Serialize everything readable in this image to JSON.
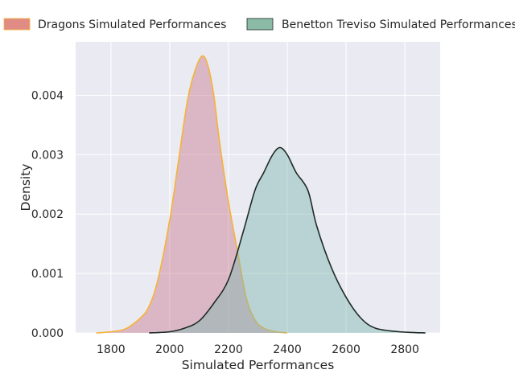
{
  "chart_data": {
    "type": "area",
    "title": "",
    "xlabel": "Simulated Performances",
    "ylabel": "Density",
    "xlim": [
      1680,
      2920
    ],
    "ylim": [
      0,
      0.0049
    ],
    "xticks": [
      1800,
      2000,
      2200,
      2400,
      2600,
      2800
    ],
    "yticks": [
      0.0,
      0.001,
      0.002,
      0.003,
      0.004
    ],
    "ytick_labels": [
      "0.000",
      "0.001",
      "0.002",
      "0.003",
      "0.004"
    ],
    "grid": true,
    "legend_position": "top",
    "series": [
      {
        "name": "Dragons Simulated Performances",
        "fill_color": "#c97a8f",
        "line_color": "#f5b335",
        "legend_color": "#e08c84",
        "points": [
          [
            1750,
            0.0
          ],
          [
            1800,
            2e-05
          ],
          [
            1850,
            7e-05
          ],
          [
            1900,
            0.00025
          ],
          [
            1930,
            0.00045
          ],
          [
            1960,
            0.0009
          ],
          [
            2000,
            0.0019
          ],
          [
            2030,
            0.0029
          ],
          [
            2060,
            0.0039
          ],
          [
            2085,
            0.0044
          ],
          [
            2110,
            0.00466
          ],
          [
            2130,
            0.0045
          ],
          [
            2150,
            0.004
          ],
          [
            2170,
            0.0032
          ],
          [
            2200,
            0.0022
          ],
          [
            2230,
            0.0014
          ],
          [
            2260,
            0.0006
          ],
          [
            2290,
            0.00022
          ],
          [
            2320,
            8e-05
          ],
          [
            2360,
            2e-05
          ],
          [
            2400,
            0.0
          ]
        ]
      },
      {
        "name": "Benetton Treviso Simulated Performances",
        "fill_color": "#7fb7b0",
        "line_color": "#1e2b25",
        "legend_color": "#8bbba7",
        "points": [
          [
            1930,
            0.0
          ],
          [
            2000,
            2e-05
          ],
          [
            2050,
            8e-05
          ],
          [
            2100,
            0.0002
          ],
          [
            2150,
            0.0005
          ],
          [
            2200,
            0.0009
          ],
          [
            2250,
            0.0017
          ],
          [
            2290,
            0.0024
          ],
          [
            2320,
            0.0027
          ],
          [
            2350,
            0.003
          ],
          [
            2375,
            0.00312
          ],
          [
            2400,
            0.003
          ],
          [
            2430,
            0.0027
          ],
          [
            2470,
            0.0024
          ],
          [
            2500,
            0.0018
          ],
          [
            2550,
            0.0011
          ],
          [
            2600,
            0.0006
          ],
          [
            2650,
            0.00025
          ],
          [
            2700,
            8e-05
          ],
          [
            2780,
            2e-05
          ],
          [
            2870,
            0.0
          ]
        ]
      }
    ]
  }
}
